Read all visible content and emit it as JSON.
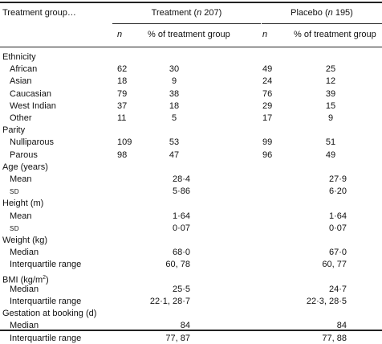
{
  "header": {
    "group_label": "Treatment group…",
    "treatment_prefix": "Treatment (",
    "treatment_n": "n",
    "treatment_suffix": " 207)",
    "placebo_prefix": "Placebo (",
    "placebo_n": "n",
    "placebo_suffix": " 195)",
    "sub_n": "n",
    "sub_pct": "% of treatment group"
  },
  "ethnicity": {
    "title": "Ethnicity",
    "rows": [
      {
        "label": "African",
        "t_n": "62",
        "t_pct": "30",
        "p_n": "49",
        "p_pct": "25"
      },
      {
        "label": "Asian",
        "t_n": "18",
        "t_pct": "9",
        "p_n": "24",
        "p_pct": "12"
      },
      {
        "label": "Caucasian",
        "t_n": "79",
        "t_pct": "38",
        "p_n": "76",
        "p_pct": "39"
      },
      {
        "label": "West Indian",
        "t_n": "37",
        "t_pct": "18",
        "p_n": "29",
        "p_pct": "15"
      },
      {
        "label": "Other",
        "t_n": "11",
        "t_pct": "5",
        "p_n": "17",
        "p_pct": "9"
      }
    ]
  },
  "parity": {
    "title": "Parity",
    "rows": [
      {
        "label": "Nulliparous",
        "t_n": "109",
        "t_pct": "53",
        "p_n": "99",
        "p_pct": "51"
      },
      {
        "label": "Parous",
        "t_n": "98",
        "t_pct": "47",
        "p_n": "96",
        "p_pct": "49"
      }
    ]
  },
  "age": {
    "title": "Age (years)",
    "rows": [
      {
        "label": "Mean",
        "t": "28·4",
        "p": "27·9"
      },
      {
        "label": "SD",
        "t": "5·86",
        "p": "6·20"
      }
    ]
  },
  "height": {
    "title": "Height (m)",
    "rows": [
      {
        "label": "Mean",
        "t": "1·64",
        "p": "1·64"
      },
      {
        "label": "SD",
        "t": "0·07",
        "p": "0·07"
      }
    ]
  },
  "weight": {
    "title": "Weight (kg)",
    "rows": [
      {
        "label": "Median",
        "t": "68·0",
        "p": "67·0"
      },
      {
        "label": "Interquartile range",
        "t": "60, 78",
        "p": "60, 77"
      }
    ]
  },
  "bmi": {
    "title_main": "BMI (kg/m",
    "title_sup": "2",
    "title_end": ")",
    "rows": [
      {
        "label": "Median",
        "t": "25·5",
        "p": "24·7"
      },
      {
        "label": "Interquartile range",
        "t": "22·1, 28·7",
        "p": "22·3, 28·5"
      }
    ]
  },
  "gestation": {
    "title": "Gestation at booking (d)",
    "rows": [
      {
        "label": "Median",
        "t": "84",
        "p": "84"
      },
      {
        "label": "Interquartile range",
        "t": "77, 87",
        "p": "77, 88"
      }
    ]
  }
}
